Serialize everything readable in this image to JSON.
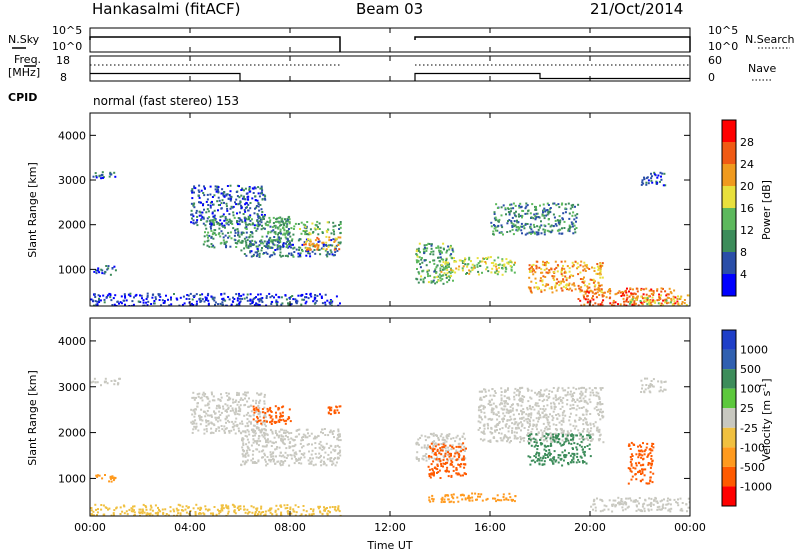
{
  "header": {
    "station": "Hankasalmi (fitACF)",
    "beam": "Beam 03",
    "date": "21/Oct/2014"
  },
  "nsky_panel": {
    "left_label": "N.Sky",
    "right_label": "N.Search",
    "yticks_left": [
      "10^5",
      "10^0"
    ],
    "yticks_right": [
      "10^5",
      "10^0"
    ]
  },
  "freq_panel": {
    "left_label_line1": "Freq.",
    "left_label_line2": "[MHz]",
    "right_label": "Nave",
    "yticks_left": [
      "18",
      "8"
    ],
    "yticks_right": [
      "60",
      "0"
    ]
  },
  "cpid": {
    "label": "CPID",
    "value": "normal (fast stereo) 153"
  },
  "colors": {
    "power": [
      "#0000ff",
      "#2a4ea8",
      "#3c8c5a",
      "#5cb85c",
      "#e8e03c",
      "#f09a1e",
      "#f05a14",
      "#ff0000"
    ],
    "velocity": [
      "#ff0000",
      "#ff5a00",
      "#ff9a1e",
      "#f0c040",
      "#c8c8c0",
      "#5cc83c",
      "#3c8c5a",
      "#3060b0",
      "#1f3fc8"
    ],
    "scatter_grey": "#c8c8c0"
  },
  "chart_data": [
    {
      "type": "line",
      "title": "",
      "panel": "N.Sky / N.Search",
      "x_range_hours": [
        0,
        24
      ],
      "data_gap_hours": [
        10.0,
        13.0
      ],
      "series": [
        {
          "name": "N.Sky",
          "x": [
            0,
            10,
            13,
            24
          ],
          "y": [
            100000,
            100000,
            100000,
            100000
          ]
        }
      ]
    },
    {
      "type": "line",
      "panel": "Freq / Nave",
      "x_range_hours": [
        0,
        24
      ],
      "series": [
        {
          "name": "Freq",
          "x": [
            0,
            6,
            6,
            10,
            13,
            18,
            18,
            24
          ],
          "y": [
            11,
            11,
            8,
            8,
            11,
            11,
            9,
            9
          ]
        },
        {
          "name": "Nave",
          "x": [
            0,
            10,
            13,
            24
          ],
          "y": [
            40,
            40,
            40,
            40
          ]
        }
      ]
    },
    {
      "type": "heatmap",
      "panel": "Power",
      "xlabel": "",
      "ylabel": "Slant Range [km]",
      "ylim": [
        180,
        4500
      ],
      "yticks": [
        1000,
        2000,
        3000,
        4000
      ],
      "colorbar_label": "Power [dB]",
      "colorbar_ticks": [
        "28",
        "24",
        "20",
        "16",
        "12",
        "8",
        "4"
      ],
      "colorbar_range": [
        0,
        32
      ],
      "bands": [
        {
          "x": [
            0,
            1.1
          ],
          "y": [
            3050,
            3200
          ],
          "v": 6
        },
        {
          "x": [
            0,
            1.0
          ],
          "y": [
            900,
            1100
          ],
          "v": 6
        },
        {
          "x": [
            0,
            10
          ],
          "y": [
            200,
            480
          ],
          "v": 4
        },
        {
          "x": [
            4.0,
            7.0
          ],
          "y": [
            2000,
            2900
          ],
          "v": 6
        },
        {
          "x": [
            4.5,
            8.0
          ],
          "y": [
            1500,
            2200
          ],
          "v": 10
        },
        {
          "x": [
            6.0,
            10.0
          ],
          "y": [
            1300,
            1700
          ],
          "v": 8
        },
        {
          "x": [
            7.0,
            10.0
          ],
          "y": [
            1800,
            2100
          ],
          "v": 12
        },
        {
          "x": [
            8.5,
            10.0
          ],
          "y": [
            1450,
            1750
          ],
          "v": 22
        },
        {
          "x": [
            13.0,
            14.5
          ],
          "y": [
            700,
            1600
          ],
          "v": 12
        },
        {
          "x": [
            14.0,
            17.0
          ],
          "y": [
            900,
            1300
          ],
          "v": 16
        },
        {
          "x": [
            16.0,
            19.5
          ],
          "y": [
            1800,
            2500
          ],
          "v": 10
        },
        {
          "x": [
            17.5,
            20.5
          ],
          "y": [
            500,
            1200
          ],
          "v": 22
        },
        {
          "x": [
            19.5,
            23.5
          ],
          "y": [
            200,
            600
          ],
          "v": 26
        },
        {
          "x": [
            21.5,
            24.0
          ],
          "y": [
            200,
            450
          ],
          "v": 20
        },
        {
          "x": [
            22.0,
            23.0
          ],
          "y": [
            2900,
            3200
          ],
          "v": 6
        }
      ]
    },
    {
      "type": "heatmap",
      "panel": "Velocity",
      "xlabel": "Time UT",
      "ylabel": "Slant Range [km]",
      "ylim": [
        180,
        4500
      ],
      "yticks": [
        1000,
        2000,
        3000,
        4000
      ],
      "xticks": [
        "00:00",
        "04:00",
        "08:00",
        "12:00",
        "16:00",
        "20:00",
        "00:00"
      ],
      "colorbar_label": "Velocity [m s^-1]",
      "colorbar_ticks": [
        "1000",
        "500",
        "100",
        "25",
        "-25",
        "-100",
        "-500",
        "-1000"
      ],
      "bands": [
        {
          "x": [
            0,
            1.2
          ],
          "y": [
            3050,
            3200
          ],
          "v": "grey"
        },
        {
          "x": [
            0,
            1.0
          ],
          "y": [
            950,
            1100
          ],
          "v": "-100"
        },
        {
          "x": [
            0,
            10
          ],
          "y": [
            200,
            450
          ],
          "v": "-25"
        },
        {
          "x": [
            4.0,
            7.0
          ],
          "y": [
            2000,
            2900
          ],
          "v": "grey"
        },
        {
          "x": [
            6.0,
            10.0
          ],
          "y": [
            1300,
            2100
          ],
          "v": "grey"
        },
        {
          "x": [
            6.5,
            8.0
          ],
          "y": [
            2200,
            2600
          ],
          "v": "-500"
        },
        {
          "x": [
            9.5,
            10.0
          ],
          "y": [
            2400,
            2600
          ],
          "v": "-500"
        },
        {
          "x": [
            13.0,
            15.0
          ],
          "y": [
            1400,
            2000
          ],
          "v": "grey"
        },
        {
          "x": [
            13.5,
            15.0
          ],
          "y": [
            1000,
            1800
          ],
          "v": "-500"
        },
        {
          "x": [
            13.5,
            17.0
          ],
          "y": [
            500,
            700
          ],
          "v": "-100"
        },
        {
          "x": [
            15.5,
            20.5
          ],
          "y": [
            1800,
            3000
          ],
          "v": "grey"
        },
        {
          "x": [
            17.5,
            20.0
          ],
          "y": [
            1300,
            2000
          ],
          "v": "100"
        },
        {
          "x": [
            20.0,
            24.0
          ],
          "y": [
            300,
            600
          ],
          "v": "grey"
        },
        {
          "x": [
            21.5,
            22.5
          ],
          "y": [
            900,
            1800
          ],
          "v": "-500"
        },
        {
          "x": [
            22.0,
            23.0
          ],
          "y": [
            2900,
            3200
          ],
          "v": "grey"
        }
      ]
    }
  ],
  "axes": {
    "ylabel": "Slant Range [km]",
    "xlabel": "Time UT",
    "power_colorbar_label": "Power [dB]",
    "velocity_colorbar_label": "Velocity [m s"
  }
}
